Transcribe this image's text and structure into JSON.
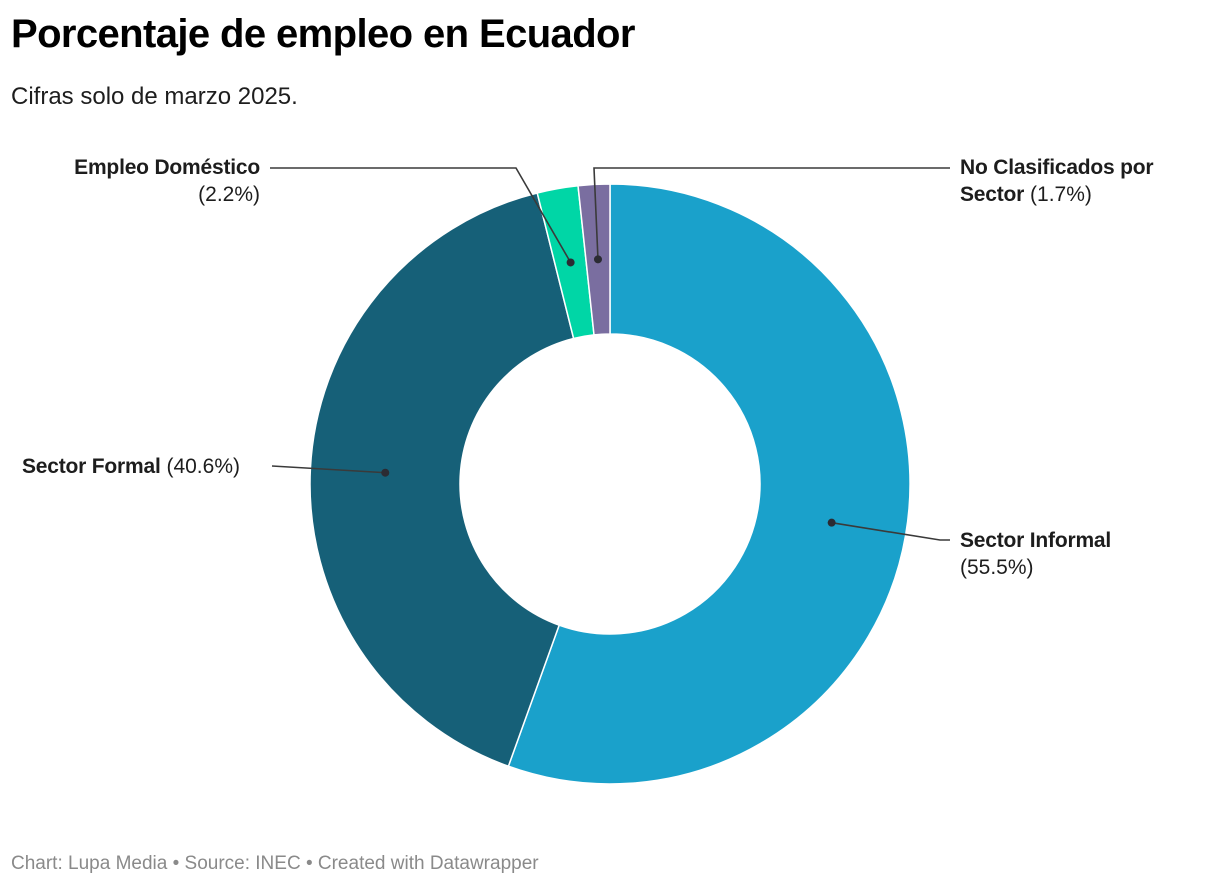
{
  "chart_data": {
    "type": "pie",
    "variant": "donut",
    "title": "Porcentaje de empleo en Ecuador",
    "subtitle": "Cifras solo de marzo 2025.",
    "unit": "%",
    "start_angle_deg": 0,
    "direction": "clockwise",
    "slices": [
      {
        "name": "Sector Informal",
        "value": 55.5,
        "value_label": "(55.5%)",
        "color": "#1aa1cb"
      },
      {
        "name": "Sector Formal",
        "value": 40.6,
        "value_label": "(40.6%)",
        "color": "#166078"
      },
      {
        "name": "Empleo Doméstico",
        "value": 2.2,
        "value_label": "(2.2%)",
        "color": "#00d6a6"
      },
      {
        "name": "No Clasificados por Sector",
        "name_line1": "No Clasificados por",
        "name_line2": "Sector",
        "value": 1.7,
        "value_label": "(1.7%)",
        "color": "#7a6ea0"
      }
    ]
  },
  "footer": {
    "text": "Chart: Lupa Media • Source: INEC • Created with Datawrapper"
  },
  "colors": {
    "leader_line": "#3a3a3a",
    "separator": "#ffffff",
    "footer_text": "#8a8a8a"
  }
}
